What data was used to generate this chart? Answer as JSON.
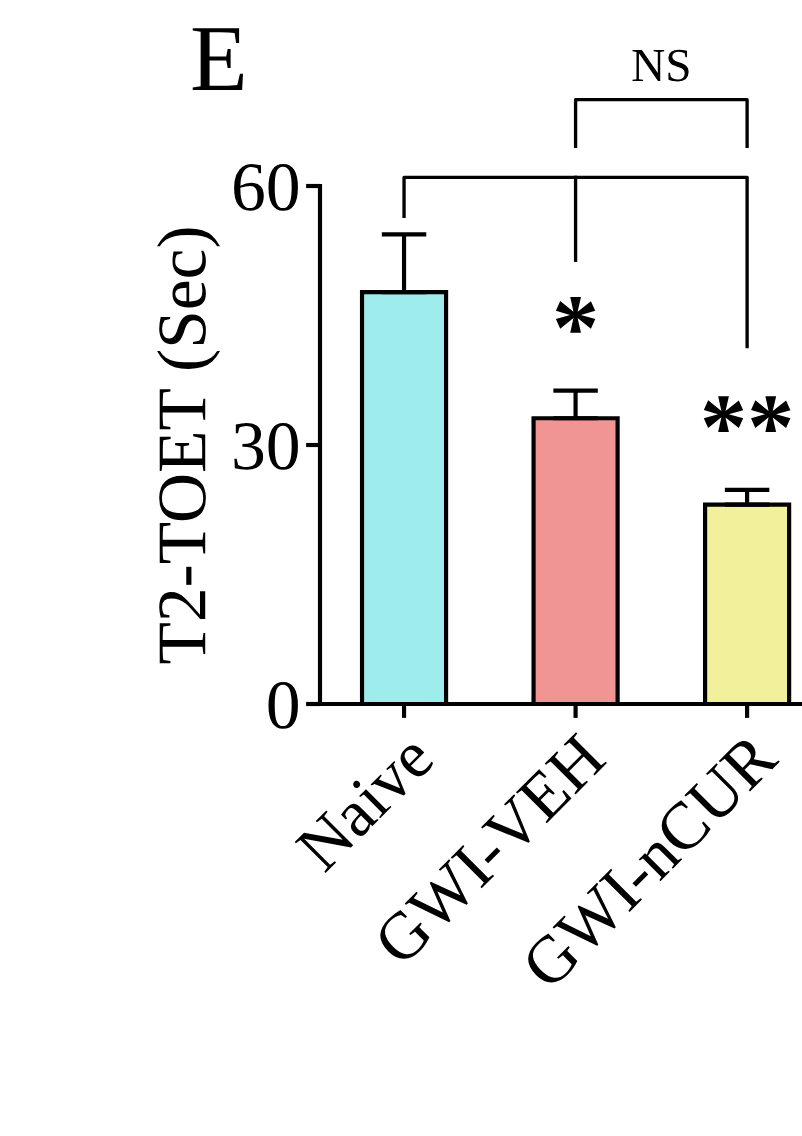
{
  "chart_data": {
    "type": "bar",
    "ylabel": "T2-TOET (Sec)",
    "categories": [
      "Naive",
      "GWI-VEH",
      "GWI-nCUR"
    ],
    "values": [
      47.7,
      33.1,
      23.1
    ],
    "errors": [
      6.7,
      3.2,
      1.7
    ],
    "colors": [
      "#9eecec",
      "#f09494",
      "#f2f09a"
    ],
    "ylim": [
      0,
      60
    ],
    "yticks": [
      0,
      30,
      60
    ],
    "grid": false,
    "annotations": [
      "E",
      "NS",
      "*",
      "**"
    ]
  }
}
